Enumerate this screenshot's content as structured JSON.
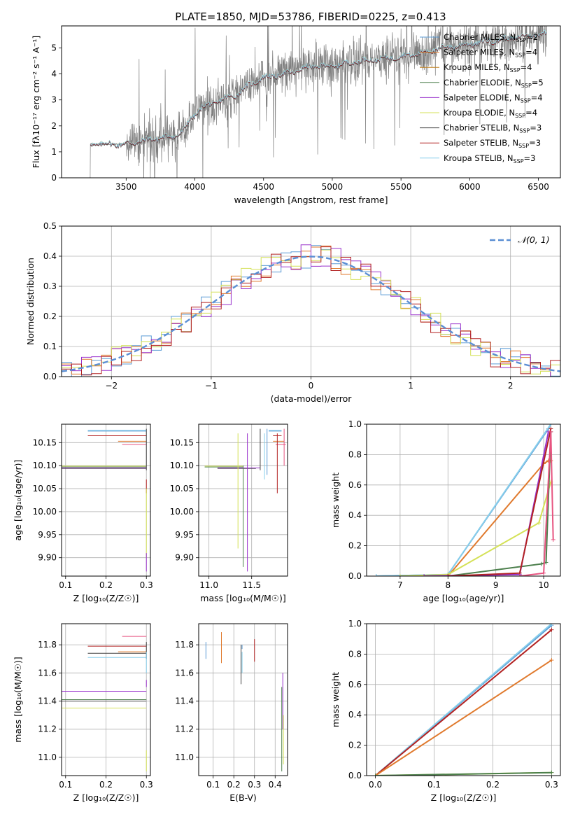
{
  "figure": {
    "title": "PLATE=1850, MJD=53786, FIBERID=0225, z=0.413"
  },
  "chart_data": [
    {
      "id": "spectrum",
      "type": "line",
      "title": "PLATE=1850, MJD=53786, FIBERID=0225, z=0.413",
      "xlabel": "wavelength [Angstrom, rest frame]",
      "ylabel": "Flux [f_λ 10^-17 erg cm^-2 s^-1 A^-1]",
      "xlim": [
        3030,
        6660
      ],
      "ylim": [
        0,
        5.85
      ],
      "xticks": [
        3500,
        4000,
        4500,
        5000,
        5500,
        6000,
        6500
      ],
      "yticks": [
        0,
        1,
        2,
        3,
        4,
        5
      ],
      "grid": false,
      "legend_position": "top-right",
      "data_color": "#808080",
      "continuum": {
        "x": [
          3240,
          3500,
          3700,
          3850,
          3920,
          3960,
          4050,
          4200,
          4300,
          4400,
          4500,
          4700,
          4850,
          5000,
          5200,
          5400,
          5600,
          5800,
          6000,
          6200,
          6400,
          6550
        ],
        "y": [
          1.3,
          1.3,
          1.5,
          1.6,
          1.8,
          2.2,
          2.7,
          3.0,
          3.2,
          3.6,
          3.85,
          4.05,
          4.3,
          4.3,
          4.5,
          4.6,
          4.75,
          5.0,
          5.15,
          5.3,
          5.45,
          5.55
        ]
      },
      "series": [
        {
          "name": "Chabrier MILES, N_SSP=2",
          "color": "#5b9bd5"
        },
        {
          "name": "Salpeter MILES, N_SSP=4",
          "color": "#e07a2e"
        },
        {
          "name": "Kroupa MILES, N_SSP=4",
          "color": "#c08020"
        },
        {
          "name": "Chabrier ELODIE, N_SSP=5",
          "color": "#4c7f4c"
        },
        {
          "name": "Salpeter ELODIE, N_SSP=4",
          "color": "#9932cc"
        },
        {
          "name": "Kroupa ELODIE, N_SSP=4",
          "color": "#d4e157"
        },
        {
          "name": "Chabrier STELIB, N_SSP=3",
          "color": "#404040"
        },
        {
          "name": "Salpeter STELIB, N_SSP=3",
          "color": "#b22222"
        },
        {
          "name": "Kroupa STELIB, N_SSP=3",
          "color": "#87ceeb"
        }
      ]
    },
    {
      "id": "residuals",
      "type": "bar",
      "xlabel": "(data-model)/error",
      "ylabel": "Normed distribution",
      "xlim": [
        -2.5,
        2.5
      ],
      "ylim": [
        0,
        0.5
      ],
      "xticks": [
        -2,
        -1,
        0,
        1,
        2
      ],
      "yticks": [
        0.0,
        0.1,
        0.2,
        0.3,
        0.4,
        0.5
      ],
      "grid": true,
      "legend_position": "top-right",
      "gaussian": {
        "label": "𝒩(0, 1)",
        "color": "#5b8fd4",
        "mu": 0,
        "sigma": 1
      },
      "bin_width": 0.1,
      "bin_start": -2.5,
      "hist_colors": [
        "#5b9bd5",
        "#e07a2e",
        "#9932cc",
        "#d4e157",
        "#b22222"
      ]
    },
    {
      "id": "age-vs-Z",
      "type": "scatter",
      "xlabel": "Z [log10(Z/Z☉)]",
      "ylabel": "age [log10(age/yr)]",
      "xlim": [
        0.09,
        0.31
      ],
      "ylim": [
        9.86,
        10.19
      ],
      "xticks": [
        0.1,
        0.2,
        0.3
      ],
      "yticks": [
        9.9,
        9.95,
        10.0,
        10.05,
        10.1,
        10.15
      ],
      "grid": true
    },
    {
      "id": "age-vs-mass",
      "type": "scatter",
      "xlabel": "mass [log10(M/M☉)]",
      "ylabel": "",
      "xlim": [
        10.88,
        11.92
      ],
      "ylim": [
        9.86,
        10.19
      ],
      "xticks": [
        11.0,
        11.5
      ],
      "yticks": [
        9.9,
        9.95,
        10.0,
        10.05,
        10.1,
        10.15
      ],
      "grid": true
    },
    {
      "id": "mass-weight-vs-age",
      "type": "line",
      "xlabel": "age [log10(age/yr)]",
      "ylabel": "mass weight",
      "xlim": [
        6.3,
        10.35
      ],
      "ylim": [
        0,
        1.0
      ],
      "xticks": [
        7,
        8,
        9,
        10
      ],
      "yticks": [
        0.0,
        0.2,
        0.4,
        0.6,
        0.8,
        1.0
      ],
      "grid": true,
      "series": [
        {
          "color": "#5b9bd5",
          "x": [
            6.5,
            8.0,
            10.1,
            10.15
          ],
          "y": [
            0,
            0.01,
            0.97,
            1.0
          ]
        },
        {
          "color": "#87ceeb",
          "x": [
            6.5,
            8.0,
            10.15
          ],
          "y": [
            0,
            0.01,
            1.0
          ]
        },
        {
          "color": "#e07a2e",
          "x": [
            8.0,
            10.0,
            10.1,
            10.15
          ],
          "y": [
            0,
            0.74,
            0.76,
            0.76
          ]
        },
        {
          "color": "#d4e157",
          "x": [
            7.0,
            8.0,
            9.9,
            10.15
          ],
          "y": [
            0,
            0.01,
            0.35,
            0.62
          ]
        },
        {
          "color": "#4c7f4c",
          "x": [
            8.0,
            9.95,
            10.05,
            10.15
          ],
          "y": [
            0,
            0.08,
            0.09,
            0.95
          ]
        },
        {
          "color": "#9932cc",
          "x": [
            7.5,
            9.5,
            10.1
          ],
          "y": [
            0,
            0.01,
            0.95
          ]
        },
        {
          "color": "#b22222",
          "x": [
            8.0,
            9.5,
            10.15
          ],
          "y": [
            0,
            0.02,
            0.97
          ]
        },
        {
          "color": "#e75480",
          "x": [
            9.5,
            10.0,
            10.15,
            10.2
          ],
          "y": [
            0,
            0.02,
            0.95,
            0.24
          ]
        }
      ]
    },
    {
      "id": "mass-vs-Z",
      "type": "scatter",
      "xlabel": "Z [log10(Z/Z☉)]",
      "ylabel": "mass [log10(M/M☉)]",
      "xlim": [
        0.09,
        0.31
      ],
      "ylim": [
        10.87,
        11.95
      ],
      "xticks": [
        0.1,
        0.2,
        0.3
      ],
      "yticks": [
        11.0,
        11.2,
        11.4,
        11.6,
        11.8
      ],
      "grid": true
    },
    {
      "id": "mass-vs-ebv",
      "type": "scatter",
      "xlabel": "E(B-V)",
      "ylabel": "",
      "xlim": [
        0.03,
        0.46
      ],
      "ylim": [
        10.87,
        11.95
      ],
      "xticks": [
        0.1,
        0.2,
        0.3,
        0.4
      ],
      "yticks": [
        11.0,
        11.2,
        11.4,
        11.6,
        11.8
      ],
      "grid": true
    },
    {
      "id": "mass-weight-vs-Z",
      "type": "line",
      "xlabel": "Z [log10(Z/Z☉)]",
      "ylabel": "mass weight",
      "xlim": [
        -0.015,
        0.315
      ],
      "ylim": [
        0,
        1.0
      ],
      "xticks": [
        0.0,
        0.1,
        0.2,
        0.3
      ],
      "yticks": [
        0.0,
        0.2,
        0.4,
        0.6,
        0.8,
        1.0
      ],
      "grid": true,
      "series": [
        {
          "color": "#5b9bd5",
          "x": [
            0.0,
            0.3
          ],
          "y": [
            0,
            0.99
          ]
        },
        {
          "color": "#87ceeb",
          "x": [
            0.0,
            0.3
          ],
          "y": [
            0,
            1.0
          ]
        },
        {
          "color": "#b22222",
          "x": [
            0.0,
            0.3
          ],
          "y": [
            0,
            0.96
          ]
        },
        {
          "color": "#e07a2e",
          "x": [
            0.0,
            0.3
          ],
          "y": [
            0,
            0.76
          ]
        },
        {
          "color": "#d4e157",
          "x": [
            0.0,
            0.3
          ],
          "y": [
            0,
            0.02
          ]
        },
        {
          "color": "#4c7f4c",
          "x": [
            0.0,
            0.3
          ],
          "y": [
            0,
            0.02
          ]
        }
      ]
    }
  ]
}
